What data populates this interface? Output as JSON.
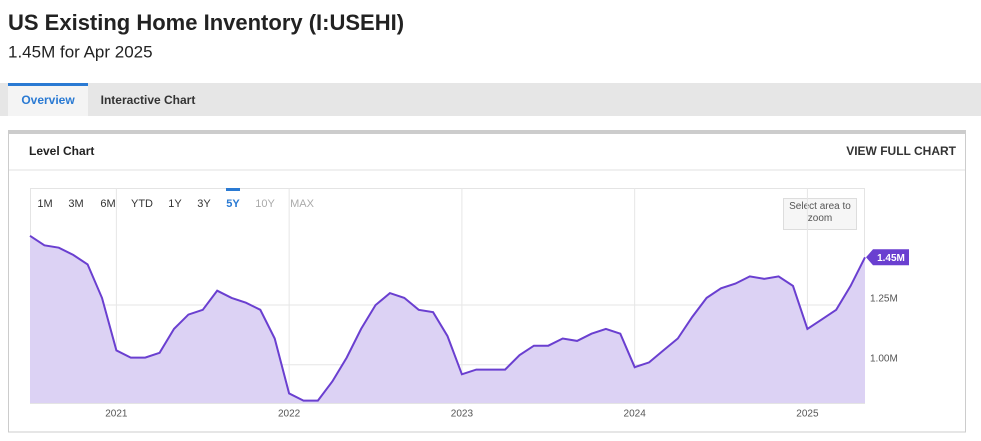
{
  "header": {
    "title": "US Existing Home Inventory (I:USEHI)",
    "subtitle": "1.45M for Apr 2025"
  },
  "tabs": [
    "Overview",
    "Interactive Chart"
  ],
  "panel": {
    "title": "Level Chart",
    "link": "VIEW FULL CHART"
  },
  "chart_data": {
    "type": "area",
    "range_buttons": [
      "1M",
      "3M",
      "6M",
      "YTD",
      "1Y",
      "3Y",
      "5Y",
      "10Y",
      "MAX"
    ],
    "selected_range": "5Y",
    "disabled_ranges": [
      "10Y",
      "MAX"
    ],
    "zoom_hint": "Select area to zoom",
    "color": "#6a3fd0",
    "fill": "#dcd2f4",
    "x": [
      "2020-06",
      "2020-07",
      "2020-08",
      "2020-09",
      "2020-10",
      "2020-11",
      "2020-12",
      "2021-01",
      "2021-02",
      "2021-03",
      "2021-04",
      "2021-05",
      "2021-06",
      "2021-07",
      "2021-08",
      "2021-09",
      "2021-10",
      "2021-11",
      "2021-12",
      "2022-01",
      "2022-02",
      "2022-03",
      "2022-04",
      "2022-05",
      "2022-06",
      "2022-07",
      "2022-08",
      "2022-09",
      "2022-10",
      "2022-11",
      "2022-12",
      "2023-01",
      "2023-02",
      "2023-03",
      "2023-04",
      "2023-05",
      "2023-06",
      "2023-07",
      "2023-08",
      "2023-09",
      "2023-10",
      "2023-11",
      "2023-12",
      "2024-01",
      "2024-02",
      "2024-03",
      "2024-04",
      "2024-05",
      "2024-06",
      "2024-07",
      "2024-08",
      "2024-09",
      "2024-10",
      "2024-11",
      "2024-12",
      "2025-01",
      "2025-02",
      "2025-03",
      "2025-04"
    ],
    "values": [
      1.54,
      1.5,
      1.49,
      1.46,
      1.42,
      1.28,
      1.06,
      1.03,
      1.03,
      1.05,
      1.15,
      1.21,
      1.23,
      1.31,
      1.28,
      1.26,
      1.23,
      1.11,
      0.88,
      0.85,
      0.85,
      0.93,
      1.03,
      1.15,
      1.25,
      1.3,
      1.28,
      1.23,
      1.22,
      1.12,
      0.96,
      0.98,
      0.98,
      0.98,
      1.04,
      1.08,
      1.08,
      1.11,
      1.1,
      1.13,
      1.15,
      1.13,
      0.99,
      1.01,
      1.06,
      1.11,
      1.2,
      1.28,
      1.32,
      1.34,
      1.37,
      1.36,
      1.37,
      1.33,
      1.15,
      1.19,
      1.23,
      1.33,
      1.45
    ],
    "value_labels": [
      null,
      null,
      null,
      null,
      null,
      null,
      null,
      null,
      null,
      null,
      null,
      null,
      null,
      null,
      null,
      null,
      null,
      null,
      null,
      null,
      null,
      null,
      null,
      null,
      null,
      null,
      null,
      null,
      null,
      null,
      null,
      null,
      null,
      null,
      null,
      null,
      null,
      null,
      null,
      null,
      null,
      null,
      null,
      null,
      null,
      null,
      null,
      null,
      null,
      null,
      null,
      null,
      null,
      null,
      null,
      null,
      null,
      null,
      "1.45M"
    ],
    "xlim": [
      "2020-06",
      "2025-04"
    ],
    "xticks": [
      2021,
      2022,
      2023,
      2024,
      2025
    ],
    "ylim": [
      0.84,
      1.74
    ],
    "yticks": [
      {
        "value": 1.0,
        "label": "1.00M"
      },
      {
        "value": 1.25,
        "label": "1.25M"
      }
    ],
    "grid": true
  }
}
